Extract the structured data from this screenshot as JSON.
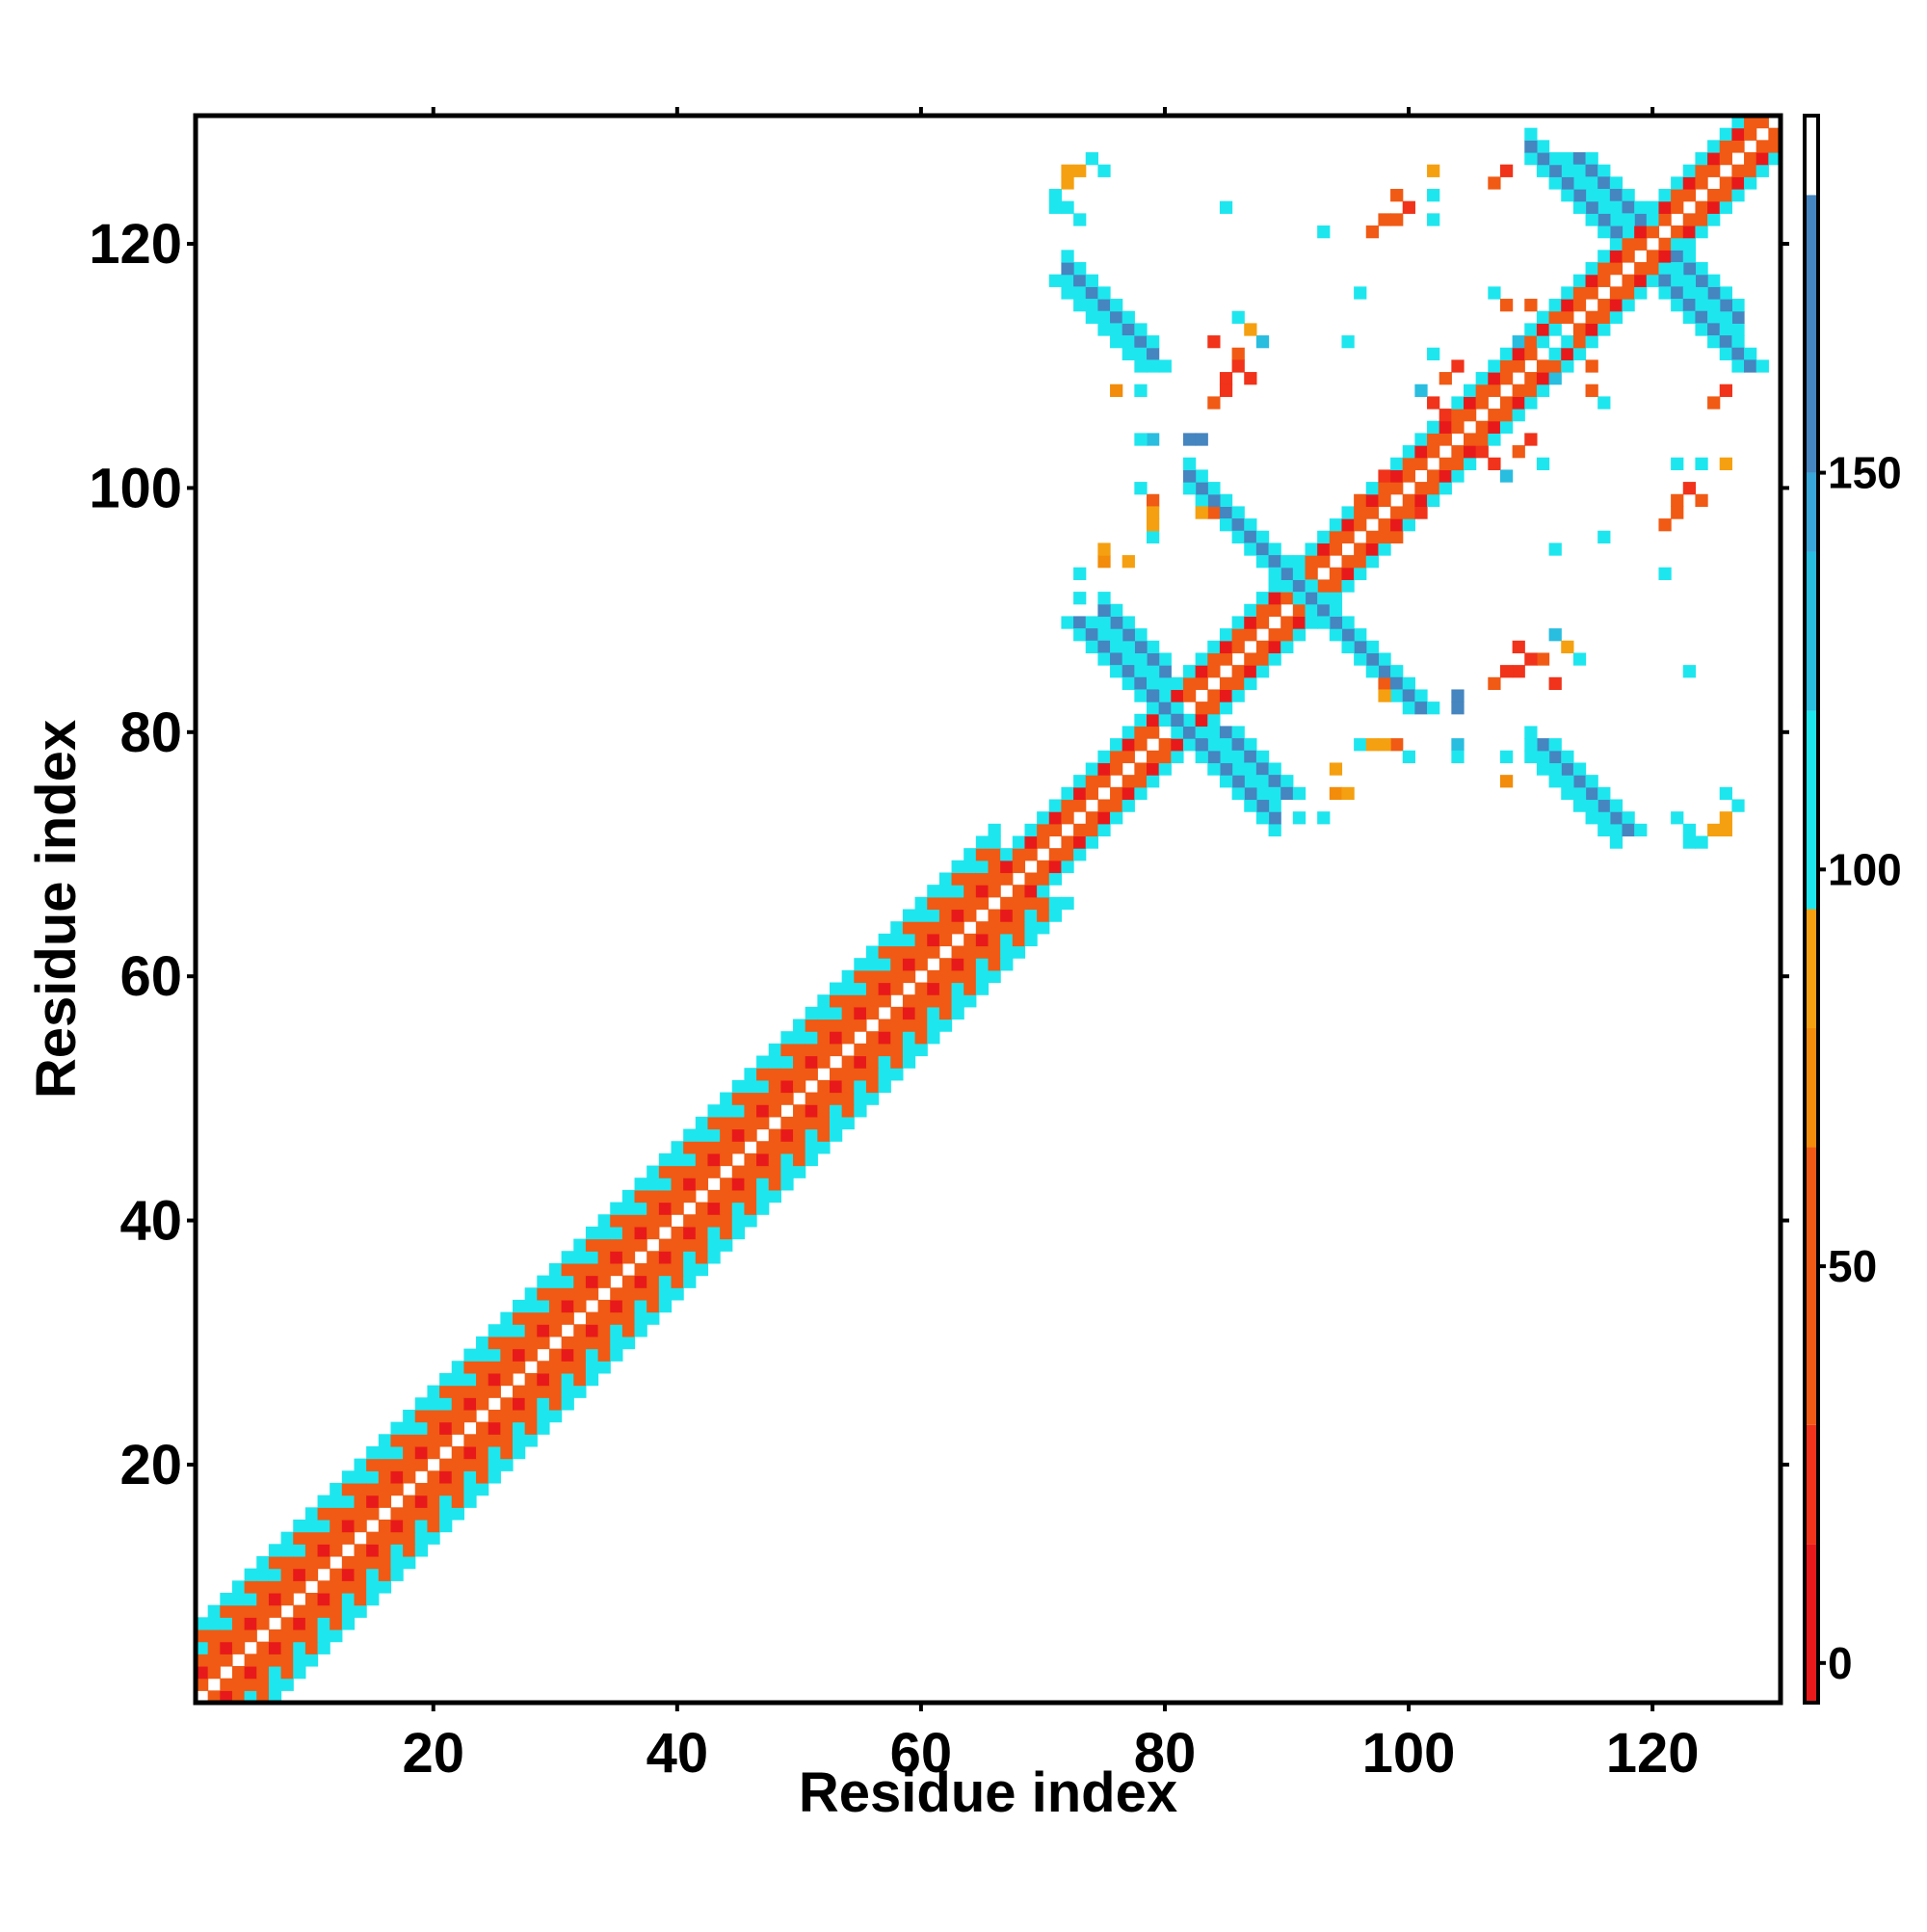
{
  "chart_data": {
    "type": "heatmap",
    "title": "",
    "xlabel": "Residue index",
    "ylabel": "Residue index",
    "xlim": [
      0.5,
      130.5
    ],
    "ylim": [
      0.5,
      130.5
    ],
    "x_ticks": [
      20,
      40,
      60,
      80,
      100,
      120
    ],
    "y_ticks": [
      20,
      40,
      60,
      80,
      100,
      120
    ],
    "x_tick_labels": [
      "20",
      "40",
      "60",
      "80",
      "100",
      "120"
    ],
    "y_tick_labels": [
      "20",
      "40",
      "60",
      "80",
      "100",
      "120"
    ],
    "grid": false,
    "n_residues": 130,
    "colorbar": {
      "position": "right",
      "range": [
        -5,
        195
      ],
      "ticks": [
        0,
        50,
        100,
        150
      ],
      "tick_labels": [
        "0",
        "50",
        "100",
        "150"
      ],
      "bands": [
        {
          "from": -5,
          "to": 15,
          "color": "#e8191a"
        },
        {
          "from": 15,
          "to": 30,
          "color": "#f0331a"
        },
        {
          "from": 30,
          "to": 65,
          "color": "#f05a14"
        },
        {
          "from": 65,
          "to": 80,
          "color": "#f28c0a"
        },
        {
          "from": 80,
          "to": 95,
          "color": "#f5a010"
        },
        {
          "from": 95,
          "to": 120,
          "color": "#1ee6ee"
        },
        {
          "from": 120,
          "to": 140,
          "color": "#29bde0"
        },
        {
          "from": 140,
          "to": 150,
          "color": "#38a6d8"
        },
        {
          "from": 150,
          "to": 185,
          "color": "#4585c0"
        },
        {
          "from": 185,
          "to": 195,
          "color": "#ffffff"
        }
      ]
    },
    "diagonal_band": {
      "segments": [
        {
          "from": 1,
          "to": 66,
          "half_width": 6
        },
        {
          "from": 67,
          "to": 130,
          "half_width": 3
        }
      ],
      "inner_period": 2,
      "values_by_offset": [
        40,
        40,
        10,
        40,
        100,
        100,
        100
      ]
    },
    "off_diagonal_blocks": [
      {
        "kind": "anti",
        "i_start": 71,
        "j_start": 117,
        "length": 8,
        "width": 3,
        "value": 160
      },
      {
        "kind": "anti",
        "i_start": 72,
        "j_start": 89,
        "length": 10,
        "width": 3,
        "value": 160
      },
      {
        "kind": "anti",
        "i_start": 84,
        "j_start": 98,
        "length": 8,
        "width": 3,
        "value": 160
      },
      {
        "kind": "anti",
        "i_start": 93,
        "j_start": 89,
        "length": 8,
        "width": 3,
        "value": 160
      },
      {
        "kind": "anti",
        "i_start": 113,
        "j_start": 127,
        "length": 6,
        "width": 3,
        "value": 160
      },
      {
        "kind": "anti",
        "i_start": 120,
        "j_start": 117,
        "length": 8,
        "width": 3,
        "value": 160
      },
      {
        "kind": "anti",
        "i_start": 110,
        "j_start": 79,
        "length": 8,
        "width": 3,
        "value": 160
      },
      {
        "kind": "anti",
        "i_start": 84,
        "j_start": 80,
        "length": 6,
        "width": 3,
        "value": 160
      }
    ],
    "scattered_points": [
      {
        "i": 73,
        "j": 126,
        "value": 80
      },
      {
        "i": 75,
        "j": 126,
        "value": 100
      },
      {
        "i": 71,
        "j": 123,
        "value": 110
      },
      {
        "i": 73,
        "j": 122,
        "value": 100
      },
      {
        "i": 76,
        "j": 108,
        "value": 75
      },
      {
        "i": 78,
        "j": 108,
        "value": 100
      },
      {
        "i": 79,
        "j": 104,
        "value": 120
      },
      {
        "i": 82,
        "j": 104,
        "value": 160
      },
      {
        "i": 83,
        "j": 104,
        "value": 100
      },
      {
        "i": 79,
        "j": 99,
        "value": 60
      },
      {
        "i": 79,
        "j": 96,
        "value": 100
      },
      {
        "i": 83,
        "j": 98,
        "value": 80
      },
      {
        "i": 75,
        "j": 94,
        "value": 75
      },
      {
        "i": 77,
        "j": 94,
        "value": 80
      },
      {
        "i": 73,
        "j": 93,
        "value": 100
      },
      {
        "i": 93,
        "j": 121,
        "value": 100
      },
      {
        "i": 86,
        "j": 111,
        "value": 100
      },
      {
        "i": 88,
        "j": 112,
        "value": 120
      },
      {
        "i": 85,
        "j": 109,
        "value": 20
      },
      {
        "i": 87,
        "j": 109,
        "value": 20
      },
      {
        "i": 84,
        "j": 107,
        "value": 40
      },
      {
        "i": 97,
        "j": 121,
        "value": 40
      },
      {
        "i": 98,
        "j": 122,
        "value": 50
      },
      {
        "i": 100,
        "j": 123,
        "value": 20
      },
      {
        "i": 102,
        "j": 126,
        "value": 75
      },
      {
        "i": 102,
        "j": 124,
        "value": 100
      },
      {
        "i": 108,
        "j": 126,
        "value": 20
      },
      {
        "i": 96,
        "j": 116,
        "value": 100
      },
      {
        "i": 97,
        "j": 79,
        "value": 80
      },
      {
        "i": 98,
        "j": 79,
        "value": 80
      },
      {
        "i": 100,
        "j": 78,
        "value": 100
      },
      {
        "i": 95,
        "j": 75,
        "value": 80
      },
      {
        "i": 93,
        "j": 73,
        "value": 100
      },
      {
        "i": 91,
        "j": 73,
        "value": 100
      },
      {
        "i": 98,
        "j": 84,
        "value": 40
      },
      {
        "i": 104,
        "j": 83,
        "value": 160
      },
      {
        "i": 104,
        "j": 78,
        "value": 100
      },
      {
        "i": 110,
        "j": 86,
        "value": 20
      },
      {
        "i": 111,
        "j": 86,
        "value": 40
      },
      {
        "i": 113,
        "j": 87,
        "value": 80
      },
      {
        "i": 114,
        "j": 86,
        "value": 110
      },
      {
        "i": 108,
        "j": 85,
        "value": 20
      },
      {
        "i": 112,
        "j": 84,
        "value": 20
      },
      {
        "i": 123,
        "j": 85,
        "value": 100
      },
      {
        "i": 123,
        "j": 72,
        "value": 100
      },
      {
        "i": 124,
        "j": 71,
        "value": 100
      },
      {
        "i": 125,
        "j": 72,
        "value": 80
      },
      {
        "i": 126,
        "j": 72,
        "value": 80
      },
      {
        "i": 127,
        "j": 74,
        "value": 100
      },
      {
        "i": 112,
        "j": 95,
        "value": 100
      },
      {
        "i": 121,
        "j": 97,
        "value": 60
      },
      {
        "i": 122,
        "j": 99,
        "value": 40
      },
      {
        "i": 123,
        "j": 100,
        "value": 20
      },
      {
        "i": 124,
        "j": 99,
        "value": 40
      },
      {
        "i": 122,
        "j": 102,
        "value": 100
      },
      {
        "i": 124,
        "j": 102,
        "value": 100
      },
      {
        "i": 126,
        "j": 102,
        "value": 80
      },
      {
        "i": 125,
        "j": 107,
        "value": 40
      },
      {
        "i": 112,
        "j": 111,
        "value": 100
      },
      {
        "i": 116,
        "j": 107,
        "value": 100
      },
      {
        "i": 115,
        "j": 108,
        "value": 40
      },
      {
        "i": 109,
        "j": 112,
        "value": 120
      },
      {
        "i": 115,
        "j": 110,
        "value": 40
      },
      {
        "i": 112,
        "j": 113,
        "value": 100
      },
      {
        "i": 109,
        "j": 103,
        "value": 40
      },
      {
        "i": 110,
        "j": 104,
        "value": 20
      },
      {
        "i": 111,
        "j": 102,
        "value": 100
      },
      {
        "i": 106,
        "j": 103,
        "value": 20
      },
      {
        "i": 107,
        "j": 102,
        "value": 20
      },
      {
        "i": 108,
        "j": 101,
        "value": 120
      },
      {
        "i": 101,
        "j": 98,
        "value": 20
      },
      {
        "i": 99,
        "j": 96,
        "value": 40
      }
    ]
  }
}
